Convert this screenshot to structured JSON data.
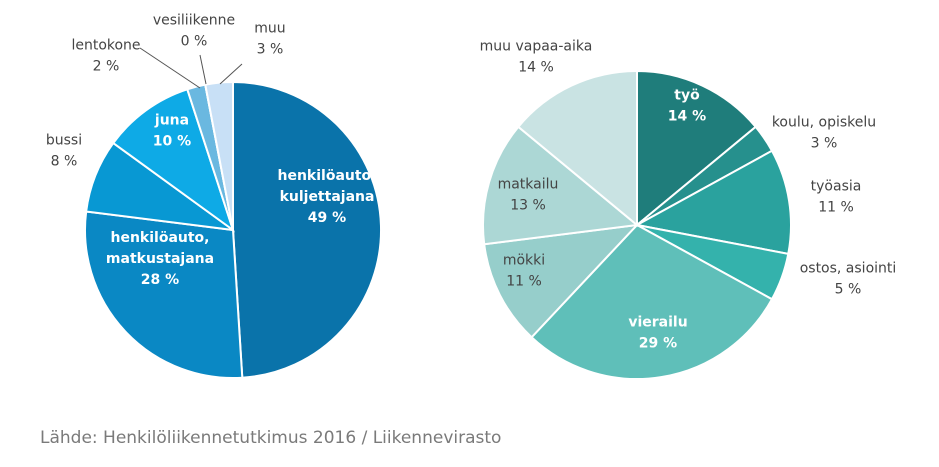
{
  "chart_data": [
    {
      "type": "pie",
      "categories": [
        "henkilöauto, kuljettajana",
        "henkilöauto, matkustajana",
        "bussi",
        "juna",
        "lentokone",
        "vesiliikenne",
        "muu"
      ],
      "values": [
        49,
        28,
        8,
        10,
        2,
        0,
        3
      ],
      "labels": [
        {
          "name": [
            "henkilöauto,",
            "kuljettajana"
          ],
          "value": "49 %"
        },
        {
          "name": [
            "henkilöauto,",
            "matkustajana"
          ],
          "value": "28 %"
        },
        {
          "name": [
            "bussi"
          ],
          "value": "8 %"
        },
        {
          "name": [
            "juna"
          ],
          "value": "10 %"
        },
        {
          "name": [
            "lentokone"
          ],
          "value": "2 %"
        },
        {
          "name": [
            "vesiliikenne"
          ],
          "value": "0 %"
        },
        {
          "name": [
            "muu"
          ],
          "value": "3 %"
        }
      ],
      "colors": [
        "#0a73aa",
        "#0a88c4",
        "#0898d3",
        "#0eaae6",
        "#6ab8e0",
        "#a9d4f0",
        "#c8e0f6"
      ]
    },
    {
      "type": "pie",
      "categories": [
        "työ",
        "koulu, opiskelu",
        "työasia",
        "ostos, asiointi",
        "vierailu",
        "mökki",
        "matkailu",
        "muu vapaa-aika"
      ],
      "values": [
        14,
        3,
        11,
        5,
        29,
        11,
        13,
        14
      ],
      "labels": [
        {
          "name": [
            "työ"
          ],
          "value": "14 %"
        },
        {
          "name": [
            "koulu, opiskelu"
          ],
          "value": "3 %"
        },
        {
          "name": [
            "työasia"
          ],
          "value": "11 %"
        },
        {
          "name": [
            "ostos, asiointi"
          ],
          "value": "5 %"
        },
        {
          "name": [
            "vierailu"
          ],
          "value": "29 %"
        },
        {
          "name": [
            "mökki"
          ],
          "value": "11 %"
        },
        {
          "name": [
            "matkailu"
          ],
          "value": "13 %"
        },
        {
          "name": [
            "muu vapaa-aika"
          ],
          "value": "14 %"
        }
      ],
      "colors": [
        "#1f7d7b",
        "#26908d",
        "#2aa29e",
        "#34b2ac",
        "#5fbfb9",
        "#96cecb",
        "#acd7d5",
        "#c9e3e3"
      ]
    }
  ],
  "source": "Lähde: Henkilöliikennetutkimus 2016 / Liikennevirasto"
}
